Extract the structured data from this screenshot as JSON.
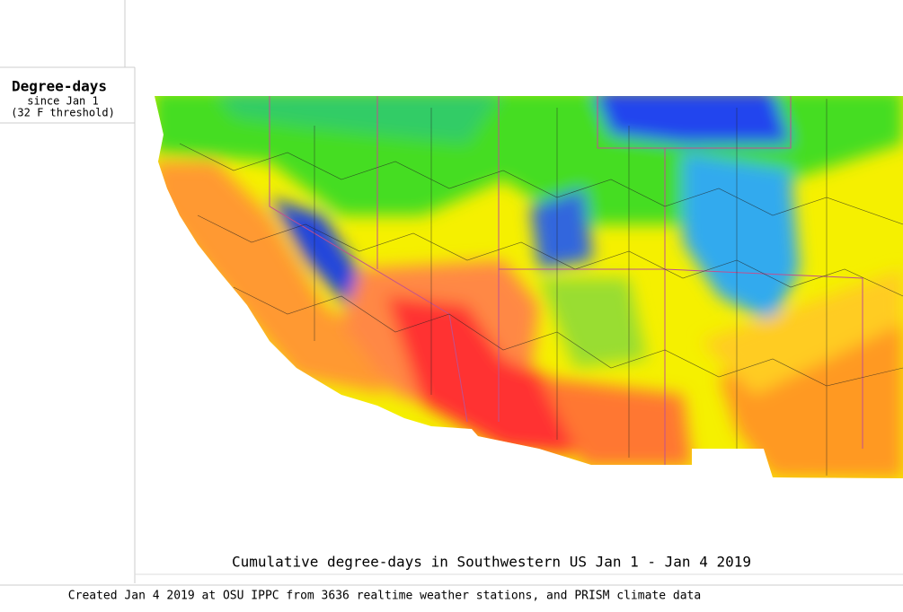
{
  "legend": {
    "title": "Degree-days",
    "subtitle": "since Jan 1",
    "threshold": "(32 F threshold)"
  },
  "title": "Cumulative degree-days in Southwestern US Jan 1 - Jan 4 2019",
  "footer": "Created Jan 4 2019 at OSU IPPC from 3636 realtime weather stations, and PRISM climate data"
}
